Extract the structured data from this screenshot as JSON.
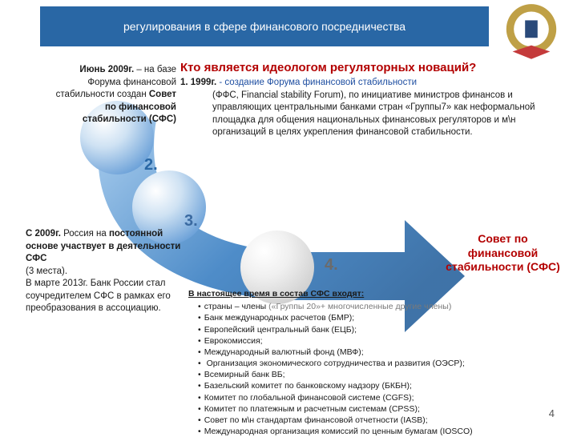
{
  "header": {
    "title": "регулирования в сфере финансового посредничества",
    "bg_color": "#2967a5"
  },
  "logo": {
    "outer_color": "#bfa046",
    "ribbon_color": "#c43b3b"
  },
  "main_heading": "Кто является идеологом регуляторных новаций?",
  "section1": {
    "lead_bold": "1. 1999г.",
    "lead_blue": " - создание Форума финансовой стабильности",
    "body": "(ФФС, Financial stability Forum),  по инициативе министров финансов и управляющих центральными банками стран «Группы7» как неформальной площадка для общения национальных финансовых регуляторов и м\\н организаций в целях укрепления финансовой стабильности."
  },
  "left1": {
    "l1": "Июнь 2009г.",
    "l2": " – на базе Форума финансовой стабильности создан ",
    "l3": "Совет по финансовой стабильности (СФС)"
  },
  "markers": {
    "n2": "2.",
    "n3": "3.",
    "n4": "4."
  },
  "left2": {
    "b1": "С 2009г.",
    "t1": "  Россия на ",
    "b2": "постоянной основе участвует в деятельности СФС",
    "t2": "(3 места).",
    "t3": "В марте 2013г. Банк России стал соучредителем СФС в рамках его преобразования в ассоциацию."
  },
  "right_label": "Совет по финансовой стабильности (СФС)",
  "members": {
    "heading": "В настоящее время в состав СФС входят:",
    "items": [
      {
        "text": "страны – члены  ",
        "gray": "(«Группы 20»+ многочисленные другие члены)"
      },
      {
        "text": "Банк международных расчетов (БМР);"
      },
      {
        "text": "Европейский центральный банк (ЕЦБ);"
      },
      {
        "text": "Еврокомиссия;"
      },
      {
        "text": "Международный валютный фонд (МВФ);"
      },
      {
        "text": " Организация экономического сотрудничества и развития (ОЭСР);"
      },
      {
        "text": "Всемирный банк ВБ;"
      },
      {
        "text": "Базельский комитет по банковскому надзору (БКБН);"
      },
      {
        "text": "Комитет по глобальной финансовой  системе (CGFS);"
      },
      {
        "text": "Комитет по платежным и расчетным системам (CPSS);"
      },
      {
        "text": "Совет по м\\н стандартам финансовой отчетности (IASB);"
      },
      {
        "text": "Международная организация комиссий по ценным бумагам (IOSCO)"
      }
    ]
  },
  "arrow": {
    "fill_start": "#9cc6ec",
    "fill_mid": "#2f78bf",
    "fill_end": "#1d5a98"
  },
  "spheres": {
    "s12_gradient": [
      "#ffffff",
      "#cfe2f3",
      "#6aa0d8",
      "#3c78b5"
    ],
    "s3_gradient": [
      "#ffffff",
      "#f0f0f0",
      "#cfcfcf",
      "#b3b3b3"
    ]
  },
  "page_number": "4"
}
